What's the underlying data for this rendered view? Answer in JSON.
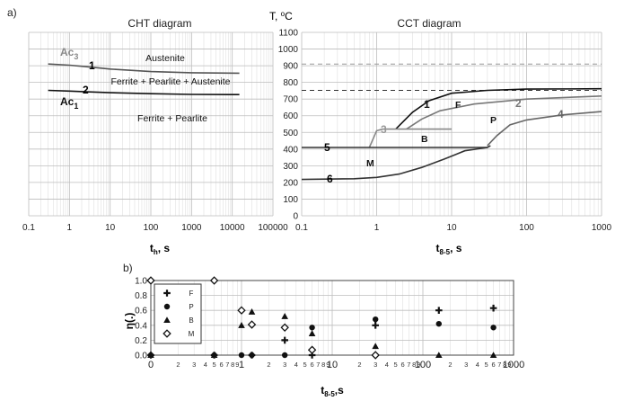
{
  "panel_a_label": "a)",
  "panel_b_label": "b)",
  "chart_data": [
    {
      "id": "cht",
      "type": "line",
      "title": "CHT diagram",
      "xlabel_main": "t",
      "xlabel_sub": "h",
      "xlabel_unit": ", s",
      "xscale": "log",
      "xlim": [
        0.1,
        100000
      ],
      "x_ticks": [
        "0.1",
        "1",
        "10",
        "100",
        "1000",
        "10000",
        "100000"
      ],
      "ylim": [
        0,
        1100
      ],
      "grid": true,
      "regions": [
        "Austenite",
        "Ferrite + Pearlite + Austenite",
        "Ferrite + Pearlite"
      ],
      "series": [
        {
          "label_num": "1",
          "label_main": "Ac",
          "label_sub": "3",
          "color": "#555555",
          "x": [
            0.3,
            1,
            3,
            10,
            100,
            1000,
            15000
          ],
          "y": [
            910,
            903,
            893,
            880,
            865,
            858,
            855
          ]
        },
        {
          "label_num": "2",
          "label_main": "Ac",
          "label_sub": "1",
          "color": "#111111",
          "x": [
            0.3,
            1,
            3,
            10,
            100,
            1000,
            15000
          ],
          "y": [
            752,
            748,
            743,
            738,
            732,
            728,
            727
          ]
        }
      ]
    },
    {
      "id": "cct",
      "type": "line",
      "title": "CCT diagram",
      "ylabel_main": "T, ",
      "ylabel_sup": "o",
      "ylabel_unit": "C",
      "xlabel_main": "t",
      "xlabel_sub": "8-5",
      "xlabel_unit": ", s",
      "xscale": "log",
      "xlim": [
        0.1,
        1000
      ],
      "x_ticks": [
        "0.1",
        "1",
        "10",
        "100",
        "1000"
      ],
      "ylim": [
        0,
        1100
      ],
      "y_ticks": [
        "0",
        "100",
        "200",
        "300",
        "400",
        "500",
        "600",
        "700",
        "800",
        "900",
        "1000",
        "1100"
      ],
      "grid": true,
      "regions": [
        "F",
        "P",
        "B",
        "M"
      ],
      "reference_lines": [
        {
          "y": 910,
          "color": "#999999"
        },
        {
          "y": 752,
          "color": "#333333"
        }
      ],
      "series": [
        {
          "label": "1",
          "color": "#111111",
          "x": [
            1.8,
            3,
            5,
            10,
            30,
            100,
            1000
          ],
          "y": [
            520,
            620,
            690,
            735,
            752,
            760,
            762
          ]
        },
        {
          "label": "2",
          "color": "#777777",
          "x": [
            2.5,
            4,
            7,
            20,
            100,
            1000
          ],
          "y": [
            520,
            580,
            630,
            670,
            700,
            718
          ]
        },
        {
          "label": "3",
          "color": "#888888",
          "x": [
            0.8,
            1,
            1.2,
            2.5,
            6,
            10
          ],
          "y": [
            410,
            510,
            520,
            520,
            520,
            520
          ]
        },
        {
          "label": "4",
          "color": "#666666",
          "x": [
            30,
            40,
            60,
            100,
            300,
            1000
          ],
          "y": [
            420,
            480,
            545,
            575,
            605,
            625
          ]
        },
        {
          "label": "5",
          "color": "#333333",
          "x": [
            0.1,
            1,
            5,
            30,
            33
          ],
          "y": [
            410,
            410,
            410,
            410,
            420
          ]
        },
        {
          "label": "6",
          "color": "#333333",
          "x": [
            0.1,
            0.5,
            1,
            2,
            4,
            8,
            15,
            30
          ],
          "y": [
            218,
            222,
            230,
            250,
            290,
            340,
            390,
            410
          ]
        }
      ]
    },
    {
      "id": "fractions",
      "type": "scatter",
      "ylabel_main": "η",
      "ylabel_unit": "(.)",
      "xlabel_main": "t",
      "xlabel_sub": "8-5",
      "xlabel_unit": ",s",
      "xscale": "log",
      "xlim": [
        0.1,
        1000
      ],
      "x_major_labels": [
        "0",
        "1",
        "10",
        "100",
        "1000"
      ],
      "x_minor_labels": [
        "2",
        "3",
        "4",
        "5",
        "6",
        "7",
        "8",
        "9"
      ],
      "ylim": [
        0,
        1
      ],
      "y_ticks": [
        "0.0",
        "0.2",
        "0.4",
        "0.6",
        "0.8",
        "1.0"
      ],
      "grid": true,
      "legend": "top-left",
      "series": [
        {
          "name": "F",
          "marker": "plus",
          "x": [
            0.1,
            0.5,
            1.3,
            3,
            6,
            30,
            150,
            600
          ],
          "y": [
            0,
            0,
            0,
            0.2,
            0,
            0.4,
            0.6,
            0.63
          ]
        },
        {
          "name": "P",
          "marker": "circle",
          "x": [
            0.1,
            0.5,
            1,
            1.3,
            3,
            6,
            30,
            150,
            600
          ],
          "y": [
            0,
            0,
            0,
            0,
            0,
            0.37,
            0.48,
            0.42,
            0.37
          ]
        },
        {
          "name": "B",
          "marker": "triangle",
          "x": [
            0.1,
            0.5,
            1,
            1.3,
            3,
            6,
            30,
            150,
            600
          ],
          "y": [
            0,
            0,
            0.4,
            0.58,
            0.52,
            0.29,
            0.12,
            0,
            0
          ]
        },
        {
          "name": "M",
          "marker": "diamond",
          "x": [
            0.1,
            0.5,
            1,
            1.3,
            3,
            6,
            30
          ],
          "y": [
            1.0,
            1.0,
            0.6,
            0.41,
            0.37,
            0.07,
            0
          ]
        }
      ]
    }
  ]
}
